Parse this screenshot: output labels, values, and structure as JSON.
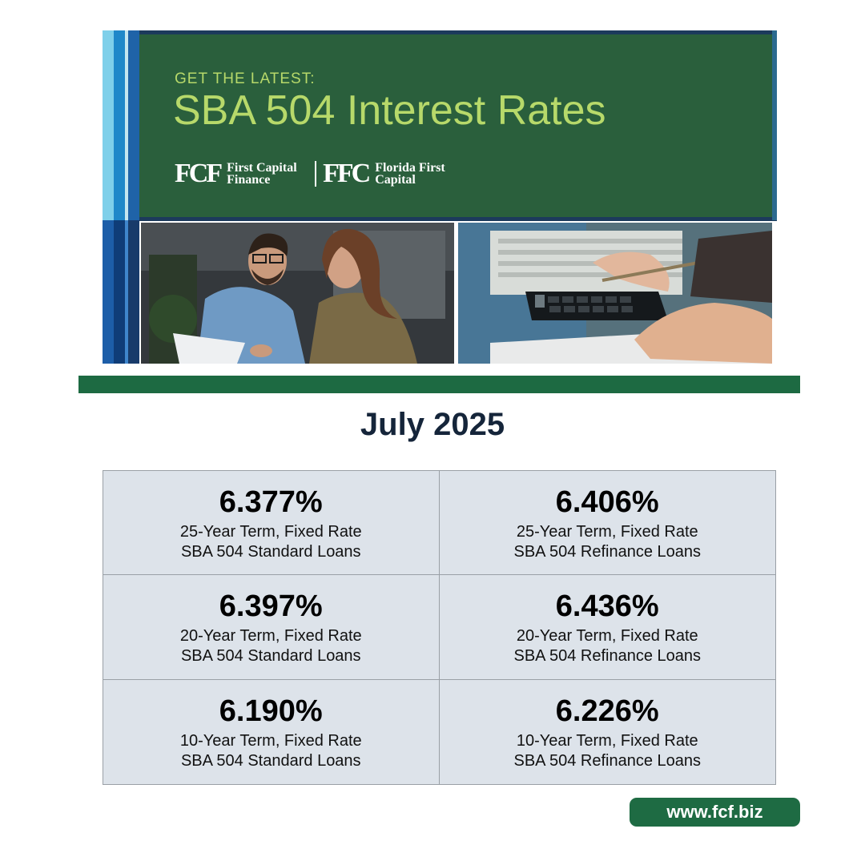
{
  "banner": {
    "kicker": "GET THE LATEST:",
    "headline": "SBA 504 Interest Rates",
    "logos": [
      {
        "mark": "FCF",
        "name_line1": "First Capital",
        "name_line2": "Finance"
      },
      {
        "mark": "FFC",
        "name_line1": "Florida First",
        "name_line2": "Capital"
      }
    ]
  },
  "month": "July 2025",
  "rates": [
    {
      "rate": "6.377%",
      "term": "25-Year Term, Fixed Rate",
      "type": "SBA 504 Standard Loans"
    },
    {
      "rate": "6.406%",
      "term": "25-Year Term, Fixed Rate",
      "type": "SBA 504 Refinance Loans"
    },
    {
      "rate": "6.397%",
      "term": "20-Year Term, Fixed Rate",
      "type": "SBA 504 Standard Loans"
    },
    {
      "rate": "6.436%",
      "term": "20-Year Term, Fixed Rate",
      "type": "SBA 504 Refinance Loans"
    },
    {
      "rate": "6.190%",
      "term": "10-Year Term, Fixed Rate",
      "type": "SBA 504 Standard Loans"
    },
    {
      "rate": "6.226%",
      "term": "10-Year Term, Fixed Rate",
      "type": "SBA 504 Refinance Loans"
    }
  ],
  "footer": {
    "url": "www.fcf.biz"
  },
  "colors": {
    "banner_green": "#2a5f3c",
    "headline_lime": "#b7d96a",
    "divider_green": "#1d6a42",
    "grid_bg": "#dde3ea",
    "title_navy": "#15253a"
  }
}
